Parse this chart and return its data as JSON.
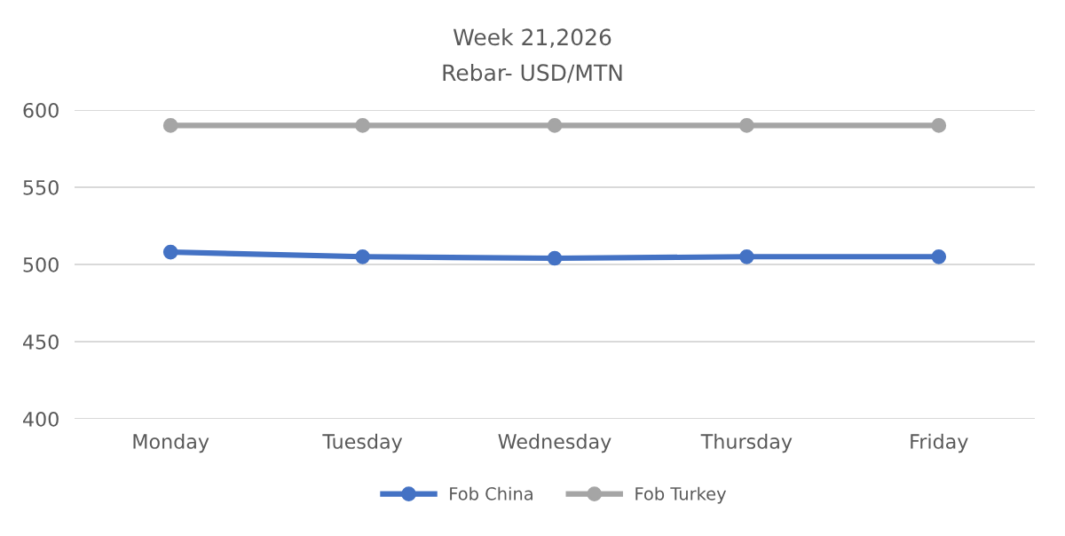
{
  "chart_data": {
    "type": "line",
    "title": "Week 21,2026",
    "subtitle": "Rebar- USD/MTN",
    "categories": [
      "Monday",
      "Tuesday",
      "Wednesday",
      "Thursday",
      "Friday"
    ],
    "series": [
      {
        "name": "Fob China",
        "color": "#4472c4",
        "values": [
          508,
          505,
          504,
          505,
          505
        ]
      },
      {
        "name": "Fob Turkey",
        "color": "#a5a5a5",
        "values": [
          590,
          590,
          590,
          590,
          590
        ]
      }
    ],
    "ylim": [
      400,
      600
    ],
    "yticks": [
      400,
      450,
      500,
      550,
      600
    ],
    "grid": "y",
    "legend": "bottom",
    "marker": "circle",
    "line_style": "solid"
  }
}
